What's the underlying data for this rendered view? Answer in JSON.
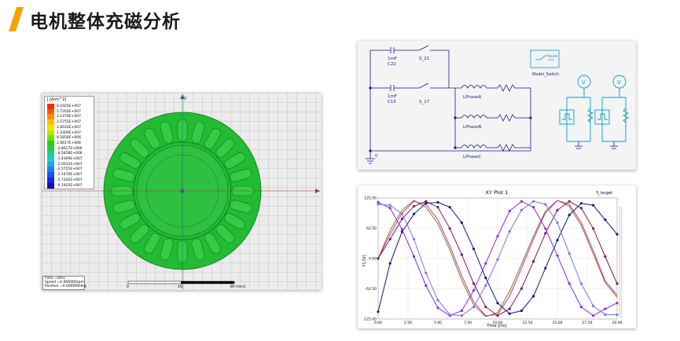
{
  "slide": {
    "title": "电机整体充磁分析",
    "accent_color": "#f5a300"
  },
  "fea": {
    "legend_title": "J [A/m^2]",
    "legend_values": [
      "9.1925E+007",
      "5.7202E+007",
      "3.1470E+007",
      "2.5755E+007",
      "2.0032E+007",
      "1.4309E+007",
      "8.5858E+006",
      "2.8617E+006",
      "-2.8617E+006",
      "-8.5858E+006",
      "-1.4309E+007",
      "-2.0032E+007",
      "-2.5755E+007",
      "-3.1470E+007",
      "-5.7202E+007",
      "-9.1925E+007"
    ],
    "legend_colors": [
      "#ff2a00",
      "#ff5a00",
      "#ff8c00",
      "#ffbf00",
      "#e8e800",
      "#b0ee00",
      "#70e000",
      "#22cc22",
      "#22cc44",
      "#22cc88",
      "#22c8c8",
      "#1aa8e8",
      "#1a80ff",
      "#1a50ff",
      "#1a28e0",
      "#1010b0"
    ],
    "axis_y": "y",
    "info_lines": [
      "Time    =0ms",
      "Speed   =0.000000rpm",
      "Position =0.000000deg"
    ],
    "scale_labels": [
      "0",
      "40",
      "80 (mm)"
    ],
    "stator_color": "#22bb33",
    "slot_count": 24
  },
  "circuit": {
    "components": {
      "c22_value": "1mF",
      "c22_name": "C22",
      "c15_value": "1mF",
      "c15_name": "C15",
      "s21": "S_21",
      "s17": "S_17",
      "phase_a": "LPhaseA",
      "phase_b": "LPhaseB",
      "phase_c": "LPhaseC",
      "ground": "0",
      "model_label": "Model",
      "model_switch": "Model_Switch",
      "meter_v": "V"
    }
  },
  "plot": {
    "title": "XY Plot 1",
    "legend_label": "3_target",
    "ylabel": "Y1 [V]",
    "xlabel": "Time [ms]"
  },
  "chart_data": {
    "type": "line",
    "title": "XY Plot 1",
    "xlabel": "Time [ms]",
    "ylabel": "Y1 [V]",
    "xlim": [
      0,
      20
    ],
    "ylim": [
      -125,
      125
    ],
    "x_ticks": [
      "0.00",
      "2.50",
      "5.00",
      "7.50",
      "10.00",
      "12.50",
      "15.00",
      "17.50",
      "20.00"
    ],
    "y_ticks": [
      "125.00",
      "62.50",
      "0.00",
      "-62.50",
      "-125.00"
    ],
    "x": [
      0,
      1,
      2,
      3,
      4,
      5,
      6,
      7,
      8,
      9,
      10,
      11,
      12,
      13,
      14,
      15,
      16,
      17,
      18,
      19,
      20
    ],
    "series": [
      {
        "color": "#7a7a20",
        "values": [
          0,
          58,
          100,
          120,
          106,
          72,
          18,
          -45,
          -96,
          -120,
          -112,
          -68,
          -12,
          46,
          98,
          120,
          108,
          68,
          10,
          -50,
          -80
        ]
      },
      {
        "color": "#cc3399",
        "values": [
          0,
          50,
          94,
          118,
          112,
          80,
          26,
          -36,
          -90,
          -118,
          -116,
          -78,
          -20,
          40,
          94,
          120,
          112,
          74,
          16,
          -46,
          -76
        ]
      },
      {
        "color": "#7b1a5a",
        "values": [
          0,
          40,
          82,
          108,
          118,
          106,
          62,
          8,
          -52,
          -100,
          -118,
          -104,
          -62,
          -6,
          52,
          100,
          118,
          104,
          62,
          4,
          -52
        ]
      },
      {
        "color": "#15158a",
        "values": [
          -110,
          -10,
          55,
          92,
          114,
          116,
          106,
          74,
          20,
          -40,
          -92,
          -114,
          -108,
          -78,
          -20,
          38,
          90,
          114,
          110,
          80,
          50
        ]
      },
      {
        "color": "#8a2be2",
        "values": [
          116,
          104,
          60,
          4,
          -56,
          -102,
          -118,
          -108,
          -66,
          -10,
          46,
          98,
          118,
          106,
          62,
          6,
          -52,
          -100,
          -118,
          -104,
          -92
        ]
      },
      {
        "color": "#7777ee",
        "values": [
          112,
          110,
          92,
          40,
          -30,
          -86,
          -116,
          -118,
          -100,
          -56,
          -2,
          56,
          100,
          118,
          112,
          74,
          10,
          -52,
          -98,
          -116,
          -116
        ]
      }
    ]
  }
}
